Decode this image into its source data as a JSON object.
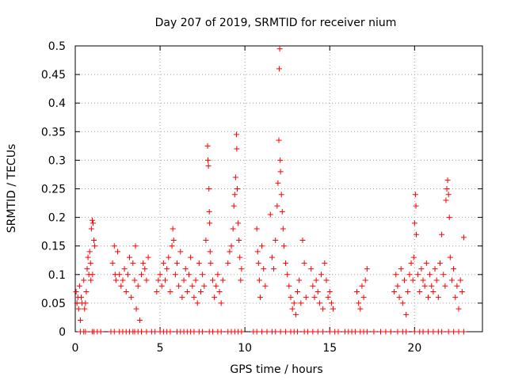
{
  "chart_data": {
    "type": "scatter",
    "title": "Day 207 of 2019, SRMTID for receiver nium",
    "xlabel": "GPS time / hours",
    "ylabel": "SRMTID / TECUs",
    "xlim": [
      0,
      24
    ],
    "ylim": [
      0,
      0.5
    ],
    "xticks": [
      0,
      5,
      10,
      15,
      20
    ],
    "xtick_labels": [
      "0",
      "5",
      "10",
      "15",
      "20"
    ],
    "yticks": [
      0,
      0.05,
      0.1,
      0.15,
      0.2,
      0.25,
      0.3,
      0.35,
      0.4,
      0.45,
      0.5
    ],
    "ytick_labels": [
      "0",
      "0.05",
      "0.1",
      "0.15",
      "0.2",
      "0.25",
      "0.3",
      "0.35",
      "0.4",
      "0.45",
      "0.5"
    ],
    "grid": true,
    "marker": "+",
    "color": "#ff0000",
    "series": [
      {
        "name": "SRMTID",
        "points": [
          [
            0.05,
            0.07
          ],
          [
            0.1,
            0.05
          ],
          [
            0.15,
            0.06
          ],
          [
            0.2,
            0.04
          ],
          [
            0.25,
            0.08
          ],
          [
            0.3,
            0.02
          ],
          [
            0.35,
            0.06
          ],
          [
            0.4,
            0.05
          ],
          [
            0.5,
            0.09
          ],
          [
            0.55,
            0.04
          ],
          [
            0.6,
            0.05
          ],
          [
            0.7,
            0.11
          ],
          [
            0.75,
            0.13
          ],
          [
            0.8,
            0.1
          ],
          [
            0.85,
            0.14
          ],
          [
            0.9,
            0.12
          ],
          [
            0.95,
            0.18
          ],
          [
            1.0,
            0.195
          ],
          [
            1.05,
            0.19
          ],
          [
            1.1,
            0.16
          ],
          [
            1.15,
            0.15
          ],
          [
            0.92,
            0.09
          ],
          [
            1.02,
            0.1
          ],
          [
            0.65,
            0.07
          ],
          [
            2.2,
            0.12
          ],
          [
            2.3,
            0.15
          ],
          [
            2.35,
            0.1
          ],
          [
            2.4,
            0.09
          ],
          [
            2.5,
            0.14
          ],
          [
            2.6,
            0.1
          ],
          [
            2.7,
            0.08
          ],
          [
            2.8,
            0.09
          ],
          [
            2.9,
            0.11
          ],
          [
            3.0,
            0.07
          ],
          [
            3.1,
            0.1
          ],
          [
            3.2,
            0.13
          ],
          [
            3.3,
            0.06
          ],
          [
            3.4,
            0.12
          ],
          [
            3.5,
            0.09
          ],
          [
            3.55,
            0.15
          ],
          [
            3.6,
            0.04
          ],
          [
            3.7,
            0.08
          ],
          [
            3.8,
            0.02
          ],
          [
            3.9,
            0.1
          ],
          [
            4.0,
            0.12
          ],
          [
            4.1,
            0.11
          ],
          [
            4.3,
            0.13
          ],
          [
            4.2,
            0.09
          ],
          [
            4.8,
            0.07
          ],
          [
            4.9,
            0.09
          ],
          [
            5.0,
            0.1
          ],
          [
            5.1,
            0.08
          ],
          [
            5.2,
            0.12
          ],
          [
            5.3,
            0.09
          ],
          [
            5.4,
            0.11
          ],
          [
            5.5,
            0.13
          ],
          [
            5.6,
            0.07
          ],
          [
            5.7,
            0.15
          ],
          [
            5.75,
            0.18
          ],
          [
            5.8,
            0.16
          ],
          [
            5.9,
            0.1
          ],
          [
            6.0,
            0.12
          ],
          [
            6.1,
            0.08
          ],
          [
            6.2,
            0.14
          ],
          [
            6.3,
            0.06
          ],
          [
            6.4,
            0.09
          ],
          [
            6.5,
            0.11
          ],
          [
            6.6,
            0.07
          ],
          [
            6.7,
            0.1
          ],
          [
            6.8,
            0.13
          ],
          [
            6.9,
            0.08
          ],
          [
            7.0,
            0.06
          ],
          [
            7.1,
            0.09
          ],
          [
            7.2,
            0.05
          ],
          [
            7.3,
            0.12
          ],
          [
            7.4,
            0.07
          ],
          [
            7.5,
            0.1
          ],
          [
            7.6,
            0.08
          ],
          [
            7.7,
            0.16
          ],
          [
            7.8,
            0.325
          ],
          [
            7.82,
            0.3
          ],
          [
            7.85,
            0.29
          ],
          [
            7.88,
            0.25
          ],
          [
            7.9,
            0.21
          ],
          [
            7.92,
            0.19
          ],
          [
            7.95,
            0.14
          ],
          [
            7.98,
            0.12
          ],
          [
            8.1,
            0.09
          ],
          [
            8.2,
            0.06
          ],
          [
            8.3,
            0.08
          ],
          [
            8.4,
            0.1
          ],
          [
            8.5,
            0.07
          ],
          [
            8.6,
            0.05
          ],
          [
            8.7,
            0.09
          ],
          [
            9.0,
            0.12
          ],
          [
            9.1,
            0.14
          ],
          [
            9.2,
            0.15
          ],
          [
            9.3,
            0.18
          ],
          [
            9.35,
            0.22
          ],
          [
            9.4,
            0.24
          ],
          [
            9.45,
            0.27
          ],
          [
            9.5,
            0.345
          ],
          [
            9.52,
            0.32
          ],
          [
            9.55,
            0.25
          ],
          [
            9.6,
            0.19
          ],
          [
            9.65,
            0.16
          ],
          [
            9.7,
            0.13
          ],
          [
            9.8,
            0.11
          ],
          [
            9.75,
            0.09
          ],
          [
            10.7,
            0.18
          ],
          [
            10.75,
            0.14
          ],
          [
            10.8,
            0.12
          ],
          [
            10.85,
            0.09
          ],
          [
            10.9,
            0.06
          ],
          [
            11.0,
            0.15
          ],
          [
            11.1,
            0.11
          ],
          [
            11.2,
            0.08
          ],
          [
            11.5,
            0.205
          ],
          [
            11.6,
            0.13
          ],
          [
            11.7,
            0.11
          ],
          [
            11.8,
            0.16
          ],
          [
            11.9,
            0.22
          ],
          [
            11.95,
            0.26
          ],
          [
            12.0,
            0.335
          ],
          [
            12.02,
            0.46
          ],
          [
            12.05,
            0.495
          ],
          [
            12.08,
            0.3
          ],
          [
            12.1,
            0.28
          ],
          [
            12.15,
            0.24
          ],
          [
            12.2,
            0.21
          ],
          [
            12.25,
            0.18
          ],
          [
            12.3,
            0.15
          ],
          [
            12.4,
            0.12
          ],
          [
            12.5,
            0.1
          ],
          [
            12.6,
            0.08
          ],
          [
            12.7,
            0.06
          ],
          [
            12.8,
            0.04
          ],
          [
            12.9,
            0.05
          ],
          [
            13.0,
            0.03
          ],
          [
            13.1,
            0.07
          ],
          [
            13.2,
            0.09
          ],
          [
            13.3,
            0.05
          ],
          [
            13.4,
            0.16
          ],
          [
            13.5,
            0.12
          ],
          [
            13.6,
            0.06
          ],
          [
            13.9,
            0.11
          ],
          [
            14.0,
            0.08
          ],
          [
            14.1,
            0.06
          ],
          [
            14.2,
            0.09
          ],
          [
            14.3,
            0.07
          ],
          [
            14.4,
            0.05
          ],
          [
            14.5,
            0.1
          ],
          [
            14.6,
            0.04
          ],
          [
            14.7,
            0.12
          ],
          [
            14.8,
            0.09
          ],
          [
            14.9,
            0.06
          ],
          [
            15.0,
            0.07
          ],
          [
            15.1,
            0.05
          ],
          [
            15.2,
            0.04
          ],
          [
            16.6,
            0.07
          ],
          [
            16.7,
            0.05
          ],
          [
            16.8,
            0.04
          ],
          [
            16.9,
            0.08
          ],
          [
            17.0,
            0.06
          ],
          [
            17.1,
            0.09
          ],
          [
            17.2,
            0.11
          ],
          [
            18.8,
            0.07
          ],
          [
            18.9,
            0.1
          ],
          [
            19.0,
            0.08
          ],
          [
            19.1,
            0.06
          ],
          [
            19.2,
            0.11
          ],
          [
            19.3,
            0.05
          ],
          [
            19.4,
            0.09
          ],
          [
            19.5,
            0.03
          ],
          [
            19.6,
            0.07
          ],
          [
            19.7,
            0.1
          ],
          [
            19.8,
            0.12
          ],
          [
            19.9,
            0.09
          ],
          [
            19.95,
            0.13
          ],
          [
            20.0,
            0.19
          ],
          [
            20.05,
            0.24
          ],
          [
            20.08,
            0.22
          ],
          [
            20.1,
            0.17
          ],
          [
            20.2,
            0.1
          ],
          [
            20.3,
            0.07
          ],
          [
            20.4,
            0.11
          ],
          [
            20.5,
            0.09
          ],
          [
            20.6,
            0.08
          ],
          [
            20.7,
            0.12
          ],
          [
            20.8,
            0.06
          ],
          [
            20.9,
            0.1
          ],
          [
            21.0,
            0.08
          ],
          [
            21.1,
            0.07
          ],
          [
            21.2,
            0.11
          ],
          [
            21.3,
            0.09
          ],
          [
            21.4,
            0.06
          ],
          [
            21.5,
            0.12
          ],
          [
            21.6,
            0.17
          ],
          [
            21.7,
            0.1
          ],
          [
            21.8,
            0.08
          ],
          [
            21.85,
            0.23
          ],
          [
            21.9,
            0.25
          ],
          [
            21.95,
            0.265
          ],
          [
            22.0,
            0.24
          ],
          [
            22.05,
            0.2
          ],
          [
            22.1,
            0.13
          ],
          [
            22.2,
            0.09
          ],
          [
            22.3,
            0.11
          ],
          [
            22.4,
            0.06
          ],
          [
            22.5,
            0.08
          ],
          [
            22.6,
            0.04
          ],
          [
            22.7,
            0.09
          ],
          [
            22.8,
            0.07
          ],
          [
            22.9,
            0.165
          ]
        ]
      }
    ],
    "zero_line_points": [
      0.3,
      0.5,
      0.6,
      1.0,
      1.1,
      1.3,
      1.5,
      2.1,
      2.3,
      2.6,
      2.8,
      3.0,
      3.2,
      3.4,
      3.5,
      3.7,
      3.9,
      4.2,
      4.5,
      4.7,
      5.0,
      5.2,
      5.4,
      5.6,
      6.0,
      6.2,
      6.4,
      6.6,
      6.8,
      7.0,
      7.3,
      7.5,
      7.9,
      8.1,
      8.4,
      8.6,
      9.0,
      9.2,
      9.4,
      9.6,
      9.8,
      10.5,
      10.7,
      11.0,
      11.3,
      11.6,
      11.8,
      12.1,
      12.4,
      12.7,
      12.9,
      13.1,
      13.5,
      13.7,
      14.0,
      14.3,
      14.6,
      15.0,
      15.3,
      15.5,
      15.9,
      16.1,
      16.3,
      16.5,
      16.8,
      17.0,
      17.2,
      17.6,
      18.0,
      18.3,
      18.6,
      19.0,
      19.3,
      19.5,
      20.0,
      20.3,
      20.5,
      20.8,
      21.1,
      21.4,
      21.6,
      22.0,
      22.3,
      22.6,
      22.9
    ]
  }
}
